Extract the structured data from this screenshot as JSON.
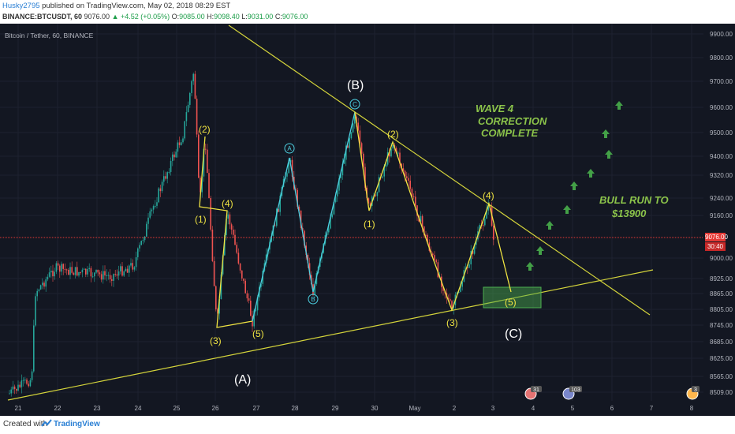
{
  "header": {
    "username": "Husky2795",
    "published_text": "published on TradingView.com, May 02, 2018 08:29 EST",
    "symbol_line": "BINANCE:BTCUSDT, 60",
    "last": "9076.00",
    "change": "+4.52 (+0.05%)",
    "open_label": "O:",
    "open": "9085.00",
    "high_label": "H:",
    "high": "9098.40",
    "low_label": "L:",
    "low": "9031.00",
    "close_label": "C:",
    "close": "9076.00"
  },
  "chart": {
    "pane_title": "Bitcoin / Tether, 60, BINANCE",
    "current_price": "9076.00",
    "countdown": "30:40",
    "y_axis_labels": [
      "9900.00",
      "9800.00",
      "9700.00",
      "9600.00",
      "9500.00",
      "9400.00",
      "9320.00",
      "9240.00",
      "9160.00",
      "9000.00",
      "8925.00",
      "8865.00",
      "8805.00",
      "8745.00",
      "8685.00",
      "8625.00",
      "8565.00",
      "8509.00"
    ],
    "x_axis_labels": [
      "21",
      "22",
      "23",
      "24",
      "25",
      "26",
      "27",
      "28",
      "29",
      "30",
      "May",
      "2",
      "3",
      "4",
      "5",
      "6",
      "7",
      "8"
    ],
    "wave_labels": {
      "B": "(B)",
      "A": "(A)",
      "C": "(C)",
      "w1a": "(1)",
      "w2a": "(2)",
      "w3a": "(3)",
      "w4a": "(4)",
      "w5a": "(5)",
      "w1b": "(1)",
      "w2b": "(2)",
      "w3b": "(3)",
      "w4b": "(4)",
      "w5b": "(5)",
      "circA": "A",
      "circB": "B",
      "circC": "C"
    },
    "annotation_wave4": [
      "WAVE 4",
      "CORRECTION",
      "COMPLETE"
    ],
    "annotation_bull": [
      "BULL RUN TO",
      "$13900"
    ],
    "event_badges": [
      "31",
      "103",
      "3"
    ],
    "colors": {
      "background": "#131722",
      "up_candle": "#26a69a",
      "down_candle": "#ef5350",
      "trendline": "#d4d43b",
      "wave_yellow": "#f0e442",
      "wave_cyan": "#4dd0e1",
      "annotation_green": "#8bc34a",
      "arrow_green": "#43a047",
      "price_line": "#e53935"
    }
  },
  "footer": {
    "created_with": "Created with",
    "brand": "TradingView"
  }
}
